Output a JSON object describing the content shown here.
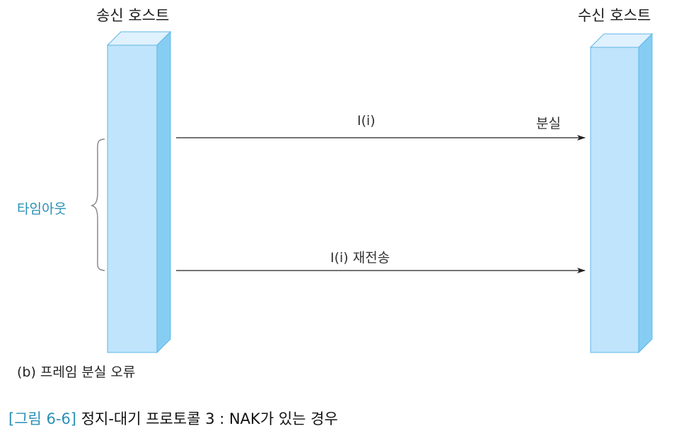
{
  "sender": {
    "title": "송신 호스트"
  },
  "receiver": {
    "title": "수신 호스트"
  },
  "messages": [
    {
      "label": "I(i)",
      "status": "분실"
    },
    {
      "label": "I(i) 재전송"
    }
  ],
  "timeout_label": "타임아웃",
  "subcaption": "(b) 프레임 분실 오류",
  "caption": {
    "figure_number": "[그림 6-6]",
    "text": "정지-대기 프로토콜 3 : NAK가 있는 경우"
  },
  "colors": {
    "host_front": "#bfe4fb",
    "host_side": "#86cdf4",
    "host_top": "#dff1fd",
    "host_edge": "#5fb6e6",
    "accent": "#2a8fb5"
  }
}
